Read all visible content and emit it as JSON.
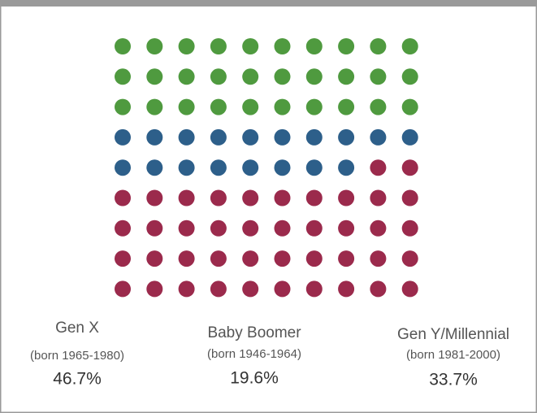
{
  "chart_data": {
    "type": "waffle",
    "categories": [
      "Gen X",
      "Baby Boomer",
      "Gen Y/Millennial"
    ],
    "sublabels": [
      "(born 1965-1980)",
      "(born 1946-1964)",
      "(born 1981-2000)"
    ],
    "values": [
      46.7,
      19.6,
      33.7
    ],
    "value_labels": [
      "46.7%",
      "19.6%",
      "33.7%"
    ],
    "colors": [
      "#9b2a4c",
      "#2d5f8a",
      "#4f9a3f"
    ]
  }
}
